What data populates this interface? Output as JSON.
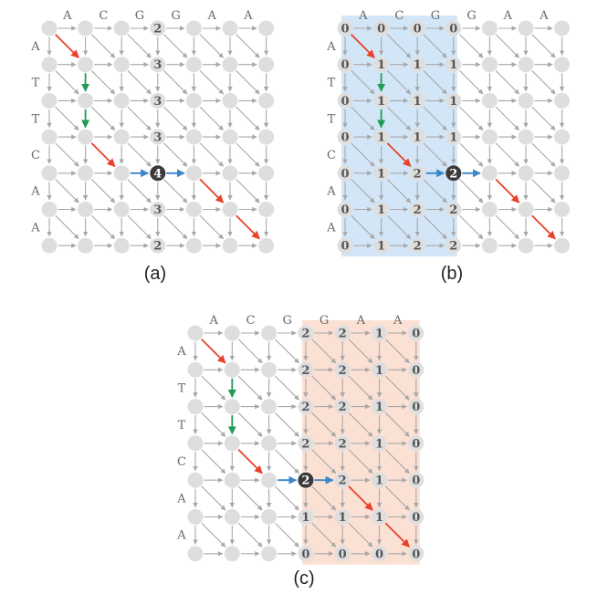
{
  "panels": [
    {
      "id": "a",
      "caption": "(a)",
      "top_sequence": [
        "A",
        "C",
        "G",
        "G",
        "A",
        "A"
      ],
      "left_sequence": [
        "A",
        "T",
        "T",
        "C",
        "A",
        "A"
      ],
      "highlight_columns": null,
      "highlight_color": "",
      "node_values": [
        {
          "row": 0,
          "col": 3,
          "value": "2"
        },
        {
          "row": 1,
          "col": 3,
          "value": "3"
        },
        {
          "row": 2,
          "col": 3,
          "value": "3"
        },
        {
          "row": 3,
          "col": 3,
          "value": "3"
        },
        {
          "row": 4,
          "col": 3,
          "value": "4",
          "dark": true
        },
        {
          "row": 5,
          "col": 3,
          "value": "3"
        },
        {
          "row": 6,
          "col": 3,
          "value": "2"
        }
      ],
      "path": [
        {
          "from": [
            0,
            0
          ],
          "to": [
            1,
            1
          ],
          "color": "red"
        },
        {
          "from": [
            1,
            1
          ],
          "to": [
            2,
            1
          ],
          "color": "green"
        },
        {
          "from": [
            2,
            1
          ],
          "to": [
            3,
            1
          ],
          "color": "green"
        },
        {
          "from": [
            3,
            1
          ],
          "to": [
            4,
            2
          ],
          "color": "red"
        },
        {
          "from": [
            4,
            2
          ],
          "to": [
            4,
            3
          ],
          "color": "blue"
        },
        {
          "from": [
            4,
            3
          ],
          "to": [
            4,
            4
          ],
          "color": "blue"
        },
        {
          "from": [
            4,
            4
          ],
          "to": [
            5,
            5
          ],
          "color": "red"
        },
        {
          "from": [
            5,
            5
          ],
          "to": [
            6,
            6
          ],
          "color": "red"
        }
      ]
    },
    {
      "id": "b",
      "caption": "(b)",
      "top_sequence": [
        "A",
        "C",
        "G",
        "G",
        "A",
        "A"
      ],
      "left_sequence": [
        "A",
        "T",
        "T",
        "C",
        "A",
        "A"
      ],
      "highlight_columns": [
        0,
        3
      ],
      "highlight_color": "#d3e6f7",
      "node_values": [
        {
          "row": 0,
          "col": 0,
          "value": "0"
        },
        {
          "row": 0,
          "col": 1,
          "value": "0"
        },
        {
          "row": 0,
          "col": 2,
          "value": "0"
        },
        {
          "row": 0,
          "col": 3,
          "value": "0"
        },
        {
          "row": 1,
          "col": 0,
          "value": "0"
        },
        {
          "row": 1,
          "col": 1,
          "value": "1"
        },
        {
          "row": 1,
          "col": 2,
          "value": "1"
        },
        {
          "row": 1,
          "col": 3,
          "value": "1"
        },
        {
          "row": 2,
          "col": 0,
          "value": "0"
        },
        {
          "row": 2,
          "col": 1,
          "value": "1"
        },
        {
          "row": 2,
          "col": 2,
          "value": "1"
        },
        {
          "row": 2,
          "col": 3,
          "value": "1"
        },
        {
          "row": 3,
          "col": 0,
          "value": "0"
        },
        {
          "row": 3,
          "col": 1,
          "value": "1"
        },
        {
          "row": 3,
          "col": 2,
          "value": "1"
        },
        {
          "row": 3,
          "col": 3,
          "value": "1"
        },
        {
          "row": 4,
          "col": 0,
          "value": "0"
        },
        {
          "row": 4,
          "col": 1,
          "value": "1"
        },
        {
          "row": 4,
          "col": 2,
          "value": "2"
        },
        {
          "row": 4,
          "col": 3,
          "value": "2",
          "dark": true
        },
        {
          "row": 5,
          "col": 0,
          "value": "0"
        },
        {
          "row": 5,
          "col": 1,
          "value": "1"
        },
        {
          "row": 5,
          "col": 2,
          "value": "2"
        },
        {
          "row": 5,
          "col": 3,
          "value": "2"
        },
        {
          "row": 6,
          "col": 0,
          "value": "0"
        },
        {
          "row": 6,
          "col": 1,
          "value": "1"
        },
        {
          "row": 6,
          "col": 2,
          "value": "2"
        },
        {
          "row": 6,
          "col": 3,
          "value": "2"
        }
      ],
      "path": [
        {
          "from": [
            0,
            0
          ],
          "to": [
            1,
            1
          ],
          "color": "red"
        },
        {
          "from": [
            1,
            1
          ],
          "to": [
            2,
            1
          ],
          "color": "green"
        },
        {
          "from": [
            2,
            1
          ],
          "to": [
            3,
            1
          ],
          "color": "green"
        },
        {
          "from": [
            3,
            1
          ],
          "to": [
            4,
            2
          ],
          "color": "red"
        },
        {
          "from": [
            4,
            2
          ],
          "to": [
            4,
            3
          ],
          "color": "blue"
        },
        {
          "from": [
            4,
            3
          ],
          "to": [
            4,
            4
          ],
          "color": "blue"
        },
        {
          "from": [
            4,
            4
          ],
          "to": [
            5,
            5
          ],
          "color": "red"
        },
        {
          "from": [
            5,
            5
          ],
          "to": [
            6,
            6
          ],
          "color": "red"
        }
      ]
    },
    {
      "id": "c",
      "caption": "(c)",
      "top_sequence": [
        "A",
        "C",
        "G",
        "G",
        "A",
        "A"
      ],
      "left_sequence": [
        "A",
        "T",
        "T",
        "C",
        "A",
        "A"
      ],
      "highlight_columns": [
        3,
        6
      ],
      "highlight_color": "#fbe0d4",
      "node_values": [
        {
          "row": 0,
          "col": 3,
          "value": "2"
        },
        {
          "row": 0,
          "col": 4,
          "value": "2"
        },
        {
          "row": 0,
          "col": 5,
          "value": "1"
        },
        {
          "row": 0,
          "col": 6,
          "value": "0"
        },
        {
          "row": 1,
          "col": 3,
          "value": "2"
        },
        {
          "row": 1,
          "col": 4,
          "value": "2"
        },
        {
          "row": 1,
          "col": 5,
          "value": "1"
        },
        {
          "row": 1,
          "col": 6,
          "value": "0"
        },
        {
          "row": 2,
          "col": 3,
          "value": "2"
        },
        {
          "row": 2,
          "col": 4,
          "value": "2"
        },
        {
          "row": 2,
          "col": 5,
          "value": "1"
        },
        {
          "row": 2,
          "col": 6,
          "value": "0"
        },
        {
          "row": 3,
          "col": 3,
          "value": "2"
        },
        {
          "row": 3,
          "col": 4,
          "value": "2"
        },
        {
          "row": 3,
          "col": 5,
          "value": "1"
        },
        {
          "row": 3,
          "col": 6,
          "value": "0"
        },
        {
          "row": 4,
          "col": 3,
          "value": "2",
          "dark": true
        },
        {
          "row": 4,
          "col": 4,
          "value": "2"
        },
        {
          "row": 4,
          "col": 5,
          "value": "1"
        },
        {
          "row": 4,
          "col": 6,
          "value": "0"
        },
        {
          "row": 5,
          "col": 3,
          "value": "1"
        },
        {
          "row": 5,
          "col": 4,
          "value": "1"
        },
        {
          "row": 5,
          "col": 5,
          "value": "1"
        },
        {
          "row": 5,
          "col": 6,
          "value": "0"
        },
        {
          "row": 6,
          "col": 3,
          "value": "0"
        },
        {
          "row": 6,
          "col": 4,
          "value": "0"
        },
        {
          "row": 6,
          "col": 5,
          "value": "0"
        },
        {
          "row": 6,
          "col": 6,
          "value": "0"
        }
      ],
      "path": [
        {
          "from": [
            0,
            0
          ],
          "to": [
            1,
            1
          ],
          "color": "red"
        },
        {
          "from": [
            1,
            1
          ],
          "to": [
            2,
            1
          ],
          "color": "green"
        },
        {
          "from": [
            2,
            1
          ],
          "to": [
            3,
            1
          ],
          "color": "green"
        },
        {
          "from": [
            3,
            1
          ],
          "to": [
            4,
            2
          ],
          "color": "red"
        },
        {
          "from": [
            4,
            2
          ],
          "to": [
            4,
            3
          ],
          "color": "blue"
        },
        {
          "from": [
            4,
            3
          ],
          "to": [
            4,
            4
          ],
          "color": "blue"
        },
        {
          "from": [
            4,
            4
          ],
          "to": [
            5,
            5
          ],
          "color": "red"
        },
        {
          "from": [
            5,
            5
          ],
          "to": [
            6,
            6
          ],
          "color": "red"
        }
      ]
    }
  ],
  "colors": {
    "node": "#dedede",
    "node_dark": "#3a3a3a",
    "edge": "#a8a8a8",
    "red": "#e8412c",
    "green": "#1f9b56",
    "blue": "#3a86c8"
  }
}
